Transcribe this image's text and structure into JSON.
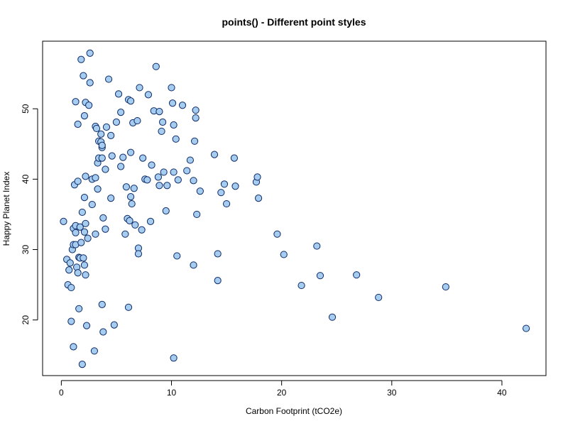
{
  "chart_data": {
    "type": "scatter",
    "title": "points() - Different point styles",
    "xlabel": "Carbon Footprint (tCO2e)",
    "ylabel": "Happy Planet Index",
    "xlim": [
      -1.7,
      44
    ],
    "ylim": [
      12.1,
      59.6
    ],
    "xticks": [
      0,
      10,
      20,
      30,
      40
    ],
    "yticks": [
      20,
      30,
      40,
      50
    ],
    "grid": false,
    "legend": "none",
    "colors": {
      "point_fill": "#a6cdf0",
      "point_stroke": "#0c2a66",
      "axis": "#000000",
      "box": "#000000"
    },
    "points": [
      {
        "x": 0.2,
        "y": 34.0
      },
      {
        "x": 0.5,
        "y": 28.6
      },
      {
        "x": 0.6,
        "y": 25.0
      },
      {
        "x": 0.7,
        "y": 27.1
      },
      {
        "x": 0.8,
        "y": 28.1
      },
      {
        "x": 0.9,
        "y": 24.6
      },
      {
        "x": 0.9,
        "y": 19.8
      },
      {
        "x": 1.0,
        "y": 30.0
      },
      {
        "x": 1.1,
        "y": 30.7
      },
      {
        "x": 1.1,
        "y": 33.0
      },
      {
        "x": 1.1,
        "y": 16.2
      },
      {
        "x": 1.2,
        "y": 39.2
      },
      {
        "x": 1.3,
        "y": 30.7
      },
      {
        "x": 1.3,
        "y": 32.4
      },
      {
        "x": 1.3,
        "y": 33.4
      },
      {
        "x": 1.3,
        "y": 51.0
      },
      {
        "x": 1.4,
        "y": 27.5
      },
      {
        "x": 1.5,
        "y": 39.7
      },
      {
        "x": 1.5,
        "y": 26.7
      },
      {
        "x": 1.5,
        "y": 47.8
      },
      {
        "x": 1.6,
        "y": 28.9
      },
      {
        "x": 1.6,
        "y": 21.6
      },
      {
        "x": 1.7,
        "y": 33.2
      },
      {
        "x": 1.7,
        "y": 28.8
      },
      {
        "x": 1.8,
        "y": 31.0
      },
      {
        "x": 1.8,
        "y": 57.0
      },
      {
        "x": 1.9,
        "y": 35.3
      },
      {
        "x": 1.9,
        "y": 13.7
      },
      {
        "x": 2.0,
        "y": 28.8
      },
      {
        "x": 2.0,
        "y": 54.7
      },
      {
        "x": 2.1,
        "y": 49.0
      },
      {
        "x": 2.1,
        "y": 37.4
      },
      {
        "x": 2.1,
        "y": 32.5
      },
      {
        "x": 2.1,
        "y": 27.8
      },
      {
        "x": 2.2,
        "y": 26.4
      },
      {
        "x": 2.2,
        "y": 40.4
      },
      {
        "x": 2.2,
        "y": 33.7
      },
      {
        "x": 2.2,
        "y": 50.9
      },
      {
        "x": 2.3,
        "y": 19.2
      },
      {
        "x": 2.4,
        "y": 31.6
      },
      {
        "x": 2.5,
        "y": 50.5
      },
      {
        "x": 2.6,
        "y": 57.9
      },
      {
        "x": 2.6,
        "y": 53.7
      },
      {
        "x": 2.8,
        "y": 36.4
      },
      {
        "x": 2.8,
        "y": 40.0
      },
      {
        "x": 3.0,
        "y": 15.6
      },
      {
        "x": 3.1,
        "y": 32.2
      },
      {
        "x": 3.1,
        "y": 47.5
      },
      {
        "x": 3.1,
        "y": 40.2
      },
      {
        "x": 3.2,
        "y": 47.2
      },
      {
        "x": 3.3,
        "y": 42.3
      },
      {
        "x": 3.3,
        "y": 38.6
      },
      {
        "x": 3.4,
        "y": 45.4
      },
      {
        "x": 3.4,
        "y": 43.0
      },
      {
        "x": 3.6,
        "y": 46.4
      },
      {
        "x": 3.6,
        "y": 45.3
      },
      {
        "x": 3.7,
        "y": 44.5
      },
      {
        "x": 3.7,
        "y": 44.8
      },
      {
        "x": 3.7,
        "y": 43.0
      },
      {
        "x": 3.7,
        "y": 22.2
      },
      {
        "x": 3.8,
        "y": 34.5
      },
      {
        "x": 3.8,
        "y": 18.3
      },
      {
        "x": 4.0,
        "y": 41.4
      },
      {
        "x": 4.0,
        "y": 32.9
      },
      {
        "x": 4.1,
        "y": 47.4
      },
      {
        "x": 4.3,
        "y": 54.2
      },
      {
        "x": 4.5,
        "y": 46.2
      },
      {
        "x": 4.5,
        "y": 37.3
      },
      {
        "x": 4.6,
        "y": 43.3
      },
      {
        "x": 4.8,
        "y": 19.3
      },
      {
        "x": 5.0,
        "y": 48.1
      },
      {
        "x": 5.2,
        "y": 52.1
      },
      {
        "x": 5.4,
        "y": 49.5
      },
      {
        "x": 5.4,
        "y": 41.8
      },
      {
        "x": 5.6,
        "y": 43.1
      },
      {
        "x": 5.8,
        "y": 32.2
      },
      {
        "x": 5.9,
        "y": 38.9
      },
      {
        "x": 6.0,
        "y": 34.4
      },
      {
        "x": 6.1,
        "y": 51.3
      },
      {
        "x": 6.1,
        "y": 21.8
      },
      {
        "x": 6.2,
        "y": 34.1
      },
      {
        "x": 6.3,
        "y": 37.5
      },
      {
        "x": 6.3,
        "y": 51.1
      },
      {
        "x": 6.3,
        "y": 43.8
      },
      {
        "x": 6.4,
        "y": 36.5
      },
      {
        "x": 6.5,
        "y": 48.0
      },
      {
        "x": 6.6,
        "y": 38.7
      },
      {
        "x": 6.7,
        "y": 33.5
      },
      {
        "x": 6.9,
        "y": 48.3
      },
      {
        "x": 7.0,
        "y": 30.2
      },
      {
        "x": 7.0,
        "y": 29.4
      },
      {
        "x": 7.1,
        "y": 53.0
      },
      {
        "x": 7.3,
        "y": 32.8
      },
      {
        "x": 7.4,
        "y": 43.0
      },
      {
        "x": 7.6,
        "y": 40.0
      },
      {
        "x": 7.8,
        "y": 39.9
      },
      {
        "x": 7.9,
        "y": 52.0
      },
      {
        "x": 8.1,
        "y": 34.0
      },
      {
        "x": 8.2,
        "y": 42.0
      },
      {
        "x": 8.4,
        "y": 49.7
      },
      {
        "x": 8.6,
        "y": 56.0
      },
      {
        "x": 8.8,
        "y": 40.3
      },
      {
        "x": 8.9,
        "y": 49.6
      },
      {
        "x": 8.9,
        "y": 39.1
      },
      {
        "x": 9.1,
        "y": 46.8
      },
      {
        "x": 9.2,
        "y": 48.1
      },
      {
        "x": 9.3,
        "y": 41.0
      },
      {
        "x": 9.5,
        "y": 35.5
      },
      {
        "x": 9.6,
        "y": 39.1
      },
      {
        "x": 10.0,
        "y": 53.0
      },
      {
        "x": 10.1,
        "y": 50.8
      },
      {
        "x": 10.2,
        "y": 47.7
      },
      {
        "x": 10.2,
        "y": 14.6
      },
      {
        "x": 10.2,
        "y": 41.0
      },
      {
        "x": 10.4,
        "y": 45.7
      },
      {
        "x": 10.5,
        "y": 29.1
      },
      {
        "x": 10.6,
        "y": 39.9
      },
      {
        "x": 11.0,
        "y": 50.5
      },
      {
        "x": 11.4,
        "y": 41.2
      },
      {
        "x": 11.7,
        "y": 42.7
      },
      {
        "x": 12.0,
        "y": 39.8
      },
      {
        "x": 12.0,
        "y": 27.8
      },
      {
        "x": 12.1,
        "y": 45.4
      },
      {
        "x": 12.2,
        "y": 49.8
      },
      {
        "x": 12.2,
        "y": 48.7
      },
      {
        "x": 12.3,
        "y": 35.0
      },
      {
        "x": 12.6,
        "y": 38.3
      },
      {
        "x": 13.9,
        "y": 43.5
      },
      {
        "x": 14.2,
        "y": 29.4
      },
      {
        "x": 14.2,
        "y": 25.6
      },
      {
        "x": 14.5,
        "y": 38.1
      },
      {
        "x": 14.8,
        "y": 39.3
      },
      {
        "x": 15.0,
        "y": 36.5
      },
      {
        "x": 15.7,
        "y": 43.0
      },
      {
        "x": 15.8,
        "y": 39.0
      },
      {
        "x": 17.7,
        "y": 39.6
      },
      {
        "x": 17.8,
        "y": 40.3
      },
      {
        "x": 17.9,
        "y": 37.3
      },
      {
        "x": 19.6,
        "y": 32.2
      },
      {
        "x": 20.2,
        "y": 29.3
      },
      {
        "x": 21.8,
        "y": 24.9
      },
      {
        "x": 23.2,
        "y": 30.5
      },
      {
        "x": 23.5,
        "y": 26.3
      },
      {
        "x": 24.6,
        "y": 20.4
      },
      {
        "x": 26.8,
        "y": 26.4
      },
      {
        "x": 28.8,
        "y": 23.2
      },
      {
        "x": 34.9,
        "y": 24.7
      },
      {
        "x": 42.2,
        "y": 18.8
      }
    ]
  }
}
